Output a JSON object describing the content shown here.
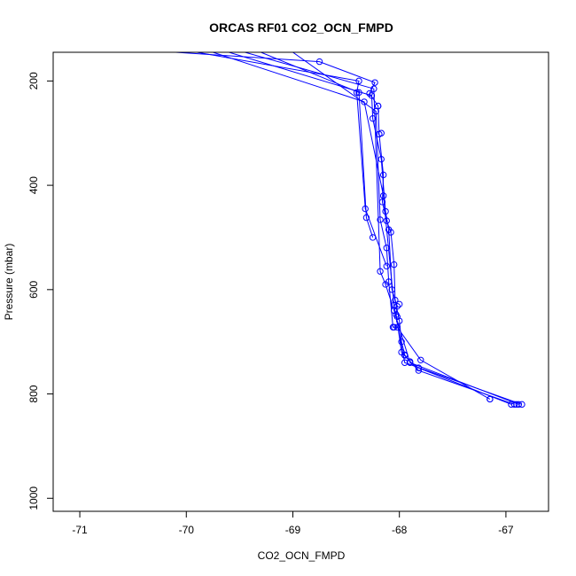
{
  "chart_data": {
    "type": "line",
    "title": "ORCAS RF01 CO2_OCN_FMPD",
    "xlabel": "CO2_OCN_FMPD",
    "ylabel": "Pressure (mbar)",
    "xlim": [
      -71.25,
      -66.6
    ],
    "ylim": [
      1025,
      145
    ],
    "y_reversed": true,
    "x_ticks": [
      -71,
      -70,
      -69,
      -68,
      -67
    ],
    "y_ticks": [
      200,
      400,
      600,
      800,
      1000
    ],
    "grid": false,
    "legend": "none",
    "series_color": "#0000ff",
    "markers": "open-circle",
    "series": [
      {
        "values": [
          {
            "x": -70.1,
            "y": 145
          },
          {
            "x": -68.75,
            "y": 163
          },
          {
            "x": -68.23,
            "y": 203
          },
          {
            "x": -68.28,
            "y": 224
          },
          {
            "x": -68.2,
            "y": 248
          },
          {
            "x": -68.19,
            "y": 302
          },
          {
            "x": -68.15,
            "y": 380
          },
          {
            "x": -68.16,
            "y": 432
          },
          {
            "x": -68.12,
            "y": 468
          },
          {
            "x": -68.08,
            "y": 490
          },
          {
            "x": -68.05,
            "y": 552
          },
          {
            "x": -68.04,
            "y": 620
          },
          {
            "x": -68.0,
            "y": 660
          },
          {
            "x": -67.98,
            "y": 700
          },
          {
            "x": -67.95,
            "y": 725
          },
          {
            "x": -67.9,
            "y": 738
          },
          {
            "x": -67.82,
            "y": 750
          },
          {
            "x": -66.95,
            "y": 820
          }
        ]
      },
      {
        "values": [
          {
            "x": -69.9,
            "y": 145
          },
          {
            "x": -68.38,
            "y": 200
          },
          {
            "x": -68.4,
            "y": 222
          },
          {
            "x": -68.32,
            "y": 445
          },
          {
            "x": -68.12,
            "y": 555
          }
        ]
      },
      {
        "values": [
          {
            "x": -69.6,
            "y": 145
          },
          {
            "x": -68.26,
            "y": 228
          },
          {
            "x": -68.25,
            "y": 272
          },
          {
            "x": -68.17,
            "y": 350
          },
          {
            "x": -68.13,
            "y": 450
          },
          {
            "x": -68.1,
            "y": 485
          },
          {
            "x": -68.07,
            "y": 600
          },
          {
            "x": -68.02,
            "y": 632
          },
          {
            "x": -68.03,
            "y": 648
          },
          {
            "x": -67.98,
            "y": 720
          },
          {
            "x": -67.82,
            "y": 755
          },
          {
            "x": -66.92,
            "y": 820
          }
        ]
      },
      {
        "values": [
          {
            "x": -69.3,
            "y": 145
          },
          {
            "x": -68.38,
            "y": 222
          },
          {
            "x": -68.31,
            "y": 462
          },
          {
            "x": -68.25,
            "y": 500
          }
        ]
      },
      {
        "values": [
          {
            "x": -69.0,
            "y": 145
          },
          {
            "x": -68.22,
            "y": 258
          },
          {
            "x": -68.18,
            "y": 466
          },
          {
            "x": -68.12,
            "y": 520
          },
          {
            "x": -68.1,
            "y": 585
          },
          {
            "x": -68.06,
            "y": 672
          },
          {
            "x": -68.02,
            "y": 672
          },
          {
            "x": -67.8,
            "y": 735
          },
          {
            "x": -67.15,
            "y": 810
          }
        ]
      },
      {
        "values": [
          {
            "x": -69.45,
            "y": 145
          },
          {
            "x": -68.24,
            "y": 215
          },
          {
            "x": -68.18,
            "y": 565
          },
          {
            "x": -68.13,
            "y": 590
          },
          {
            "x": -68.05,
            "y": 640
          },
          {
            "x": -67.9,
            "y": 740
          },
          {
            "x": -66.88,
            "y": 820
          }
        ]
      },
      {
        "values": [
          {
            "x": -69.75,
            "y": 145
          },
          {
            "x": -68.33,
            "y": 240
          },
          {
            "x": -68.15,
            "y": 420
          },
          {
            "x": -68.05,
            "y": 630
          },
          {
            "x": -67.95,
            "y": 740
          },
          {
            "x": -66.85,
            "y": 820
          }
        ]
      }
    ],
    "singleton_points": [
      {
        "x": -68.2,
        "y": 248
      },
      {
        "x": -68.17,
        "y": 300
      },
      {
        "x": -68.0,
        "y": 628
      },
      {
        "x": -68.02,
        "y": 652
      },
      {
        "x": -68.05,
        "y": 672
      },
      {
        "x": -67.95,
        "y": 726
      },
      {
        "x": -67.15,
        "y": 810
      },
      {
        "x": -66.9,
        "y": 820
      }
    ]
  }
}
